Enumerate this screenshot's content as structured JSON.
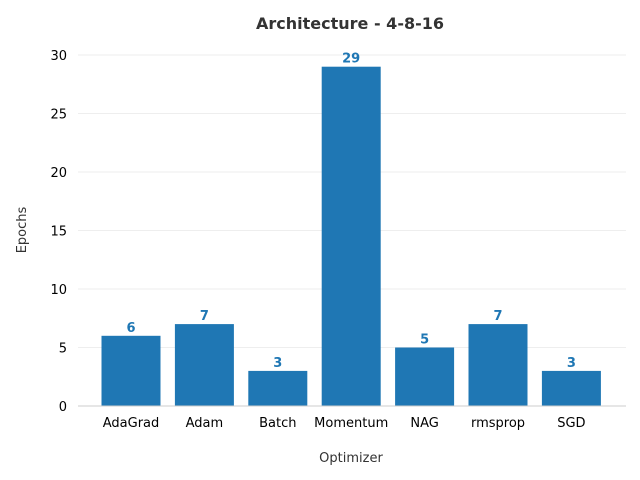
{
  "chart_data": {
    "type": "bar",
    "title": "Architecture - 4-8-16",
    "xlabel": "Optimizer",
    "ylabel": "Epochs",
    "categories": [
      "AdaGrad",
      "Adam",
      "Batch",
      "Momentum",
      "NAG",
      "rmsprop",
      "SGD"
    ],
    "values": [
      6,
      7,
      3,
      29,
      5,
      7,
      3
    ],
    "data_labels": [
      "6",
      "7",
      "3",
      "29",
      "5",
      "7",
      "3"
    ],
    "ylim": [
      0,
      30
    ],
    "yticks": [
      0,
      5,
      10,
      15,
      20,
      25,
      30
    ],
    "ytick_labels": [
      "0",
      "5",
      "10",
      "15",
      "20",
      "25",
      "30"
    ],
    "grid": true,
    "legend": "none",
    "colors": {
      "bar": "#1f77b4",
      "data_label": "#1f77b4",
      "grid": "#e8e8e8",
      "text": "#333333"
    }
  }
}
